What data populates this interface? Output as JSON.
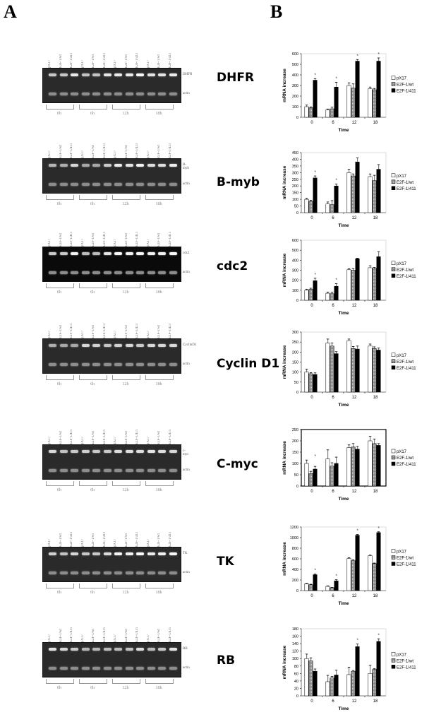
{
  "figure": {
    "panel_a_label": "A",
    "panel_b_label": "B"
  },
  "lane_labels": [
    "pX17",
    "E2F-1/wt",
    "E2F-1/411"
  ],
  "time_labels": [
    "0h",
    "6h",
    "12h",
    "18h"
  ],
  "loading_control": "actin",
  "rows": [
    {
      "gene": "DHFR",
      "band_tag": "DHFR",
      "control_tag": "actin"
    },
    {
      "gene": "B-myb",
      "band_tag": "B-myb",
      "control_tag": "actin"
    },
    {
      "gene": "cdc2",
      "band_tag": "cdc2",
      "control_tag": "actin"
    },
    {
      "gene": "Cyclin D1",
      "band_tag": "CyclinD1",
      "control_tag": "actin"
    },
    {
      "gene": "C-myc",
      "band_tag": "c-myc",
      "control_tag": "actin"
    },
    {
      "gene": "TK",
      "band_tag": "TK",
      "control_tag": "actin"
    },
    {
      "gene": "RB",
      "band_tag": "RB",
      "control_tag": "actin"
    }
  ],
  "chart_data": [
    {
      "type": "bar",
      "title": "DHFR",
      "categories": [
        "0",
        "6",
        "12",
        "18"
      ],
      "xlabel": "Time",
      "ylabel": "mRNA increase",
      "ylim": [
        0,
        600
      ],
      "yticks": [
        0,
        100,
        200,
        300,
        400,
        500,
        600
      ],
      "legend_position": "right",
      "series": [
        {
          "name": "pX17",
          "values": [
            100,
            70,
            300,
            270
          ],
          "errors": [
            15,
            8,
            25,
            15
          ]
        },
        {
          "name": "E2F-1/wt",
          "values": [
            90,
            80,
            275,
            260
          ],
          "errors": [
            8,
            15,
            40,
            12
          ]
        },
        {
          "name": "E2F-1/411",
          "values": [
            350,
            285,
            530,
            530
          ],
          "errors": [
            15,
            45,
            15,
            30
          ]
        }
      ],
      "significance": [
        "*",
        "*",
        "*",
        "*"
      ]
    },
    {
      "type": "bar",
      "title": "B-myb",
      "categories": [
        "0",
        "6",
        "12",
        "18"
      ],
      "xlabel": "Time",
      "ylabel": "mRNA increase",
      "ylim": [
        0,
        450
      ],
      "yticks": [
        0,
        50,
        100,
        150,
        200,
        250,
        300,
        350,
        400,
        450
      ],
      "legend_position": "right",
      "series": [
        {
          "name": "pX17",
          "values": [
            100,
            65,
            300,
            270
          ],
          "errors": [
            8,
            15,
            25,
            20
          ]
        },
        {
          "name": "E2F-1/wt",
          "values": [
            85,
            60,
            275,
            240
          ],
          "errors": [
            8,
            30,
            15,
            40
          ]
        },
        {
          "name": "E2F-1/411",
          "values": [
            260,
            200,
            380,
            325
          ],
          "errors": [
            15,
            15,
            30,
            35
          ]
        }
      ],
      "significance": [
        "*",
        "*",
        "",
        ""
      ]
    },
    {
      "type": "bar",
      "title": "cdc2",
      "categories": [
        "0",
        "6",
        "12",
        "18"
      ],
      "xlabel": "Time",
      "ylabel": "mRNA increase",
      "ylim": [
        0,
        600
      ],
      "yticks": [
        0,
        100,
        200,
        300,
        400,
        500,
        600
      ],
      "legend_position": "right",
      "series": [
        {
          "name": "pX17",
          "values": [
            100,
            70,
            305,
            325
          ],
          "errors": [
            10,
            12,
            10,
            20
          ]
        },
        {
          "name": "E2F-1/wt",
          "values": [
            110,
            65,
            300,
            320
          ],
          "errors": [
            10,
            15,
            15,
            8
          ]
        },
        {
          "name": "E2F-1/411",
          "values": [
            195,
            140,
            415,
            435
          ],
          "errors": [
            25,
            25,
            5,
            50
          ]
        }
      ],
      "significance": [
        "*",
        "*",
        "",
        ""
      ]
    },
    {
      "type": "bar",
      "title": "Cyclin D1",
      "categories": [
        "0",
        "6",
        "12",
        "18"
      ],
      "xlabel": "Time",
      "ylabel": "mRNA increase",
      "ylim": [
        0,
        300
      ],
      "yticks": [
        0,
        50,
        100,
        150,
        200,
        250,
        300
      ],
      "legend_position": "right",
      "series": [
        {
          "name": "pX17",
          "values": [
            100,
            245,
            257,
            230
          ],
          "errors": [
            15,
            20,
            8,
            10
          ]
        },
        {
          "name": "E2F-1/wt",
          "values": [
            92,
            230,
            218,
            218
          ],
          "errors": [
            5,
            15,
            10,
            8
          ]
        },
        {
          "name": "E2F-1/411",
          "values": [
            88,
            192,
            215,
            210
          ],
          "errors": [
            8,
            10,
            15,
            10
          ]
        }
      ],
      "significance": [
        "",
        "",
        "",
        ""
      ]
    },
    {
      "type": "bar",
      "title": "C-myc",
      "categories": [
        "0",
        "6",
        "12",
        "18"
      ],
      "xlabel": "Time",
      "ylabel": "mRNA increase",
      "ylim": [
        0,
        250
      ],
      "yticks": [
        0,
        50,
        100,
        150,
        200,
        250
      ],
      "legend_position": "right",
      "series": [
        {
          "name": "pX17",
          "values": [
            100,
            120,
            170,
            200
          ],
          "errors": [
            15,
            40,
            12,
            20
          ]
        },
        {
          "name": "E2F-1/wt",
          "values": [
            55,
            88,
            173,
            188
          ],
          "errors": [
            10,
            15,
            15,
            20
          ]
        },
        {
          "name": "E2F-1/411",
          "values": [
            75,
            100,
            163,
            180
          ],
          "errors": [
            12,
            28,
            12,
            8
          ]
        }
      ],
      "significance": [
        "*",
        "",
        "",
        ""
      ]
    },
    {
      "type": "bar",
      "title": "TK",
      "categories": [
        "0",
        "6",
        "12",
        "18"
      ],
      "xlabel": "Time",
      "ylabel": "mRNA increase",
      "ylim": [
        0,
        1200
      ],
      "yticks": [
        0,
        200,
        400,
        600,
        800,
        1000,
        1200
      ],
      "legend_position": "right",
      "series": [
        {
          "name": "pX17",
          "values": [
            130,
            80,
            605,
            660
          ],
          "errors": [
            10,
            10,
            15,
            10
          ]
        },
        {
          "name": "E2F-1/wt",
          "values": [
            110,
            55,
            565,
            510
          ],
          "errors": [
            10,
            5,
            15,
            10
          ]
        },
        {
          "name": "E2F-1/411",
          "values": [
            300,
            185,
            1045,
            1095
          ],
          "errors": [
            15,
            20,
            15,
            15
          ]
        }
      ],
      "significance": [
        "*",
        "*",
        "*",
        "*"
      ]
    },
    {
      "type": "bar",
      "title": "RB",
      "categories": [
        "0",
        "6",
        "12",
        "18"
      ],
      "xlabel": "Time",
      "ylabel": "mRNA increase",
      "ylim": [
        0,
        180
      ],
      "yticks": [
        0,
        20,
        40,
        60,
        80,
        100,
        120,
        140,
        160,
        180
      ],
      "legend_position": "right",
      "series": [
        {
          "name": "pX17",
          "values": [
            100,
            38,
            57,
            60
          ],
          "errors": [
            12,
            17,
            20,
            22
          ]
        },
        {
          "name": "E2F-1/wt",
          "values": [
            94,
            48,
            66,
            71
          ],
          "errors": [
            8,
            4,
            2,
            2
          ]
        },
        {
          "name": "E2F-1/411",
          "values": [
            66,
            56,
            132,
            146
          ],
          "errors": [
            6,
            13,
            7,
            7
          ]
        }
      ],
      "significance": [
        "",
        "",
        "*",
        "*"
      ]
    }
  ]
}
